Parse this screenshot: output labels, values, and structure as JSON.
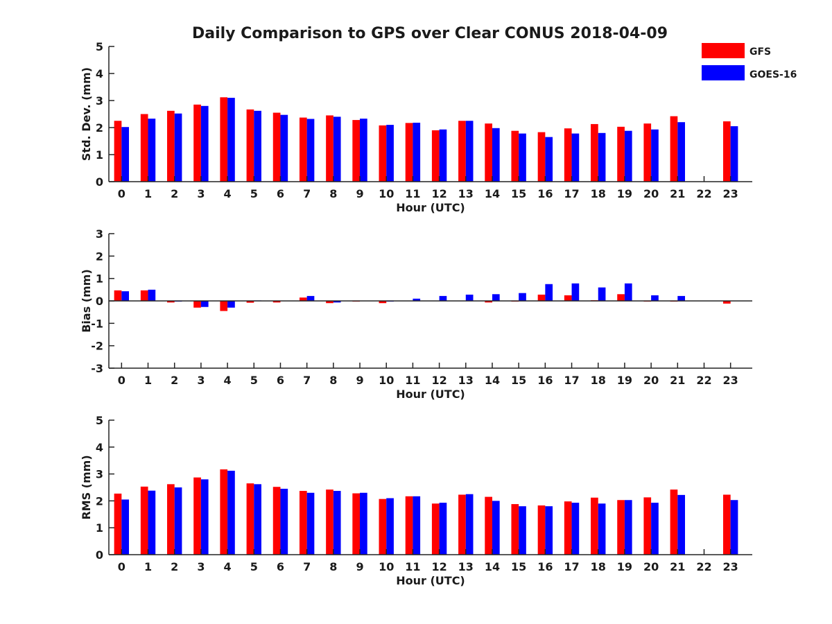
{
  "title": "Daily Comparison to GPS over Clear CONUS 2018-04-09",
  "colors": {
    "GFS": "#ff0000",
    "GOES-16": "#0000ff",
    "axis": "#222222"
  },
  "legend": [
    "GFS",
    "GOES-16"
  ],
  "chart_data": [
    {
      "type": "bar",
      "name": "std-dev",
      "xlabel": "Hour (UTC)",
      "ylabel": "Std. Dev. (mm)",
      "ylim": [
        0,
        5
      ],
      "yticks": [
        0,
        1,
        2,
        3,
        4,
        5
      ],
      "categories": [
        "0",
        "1",
        "2",
        "3",
        "4",
        "5",
        "6",
        "7",
        "8",
        "9",
        "10",
        "11",
        "12",
        "13",
        "14",
        "15",
        "16",
        "17",
        "18",
        "19",
        "20",
        "21",
        "22",
        "23"
      ],
      "series": [
        {
          "name": "GFS",
          "values": [
            2.25,
            2.5,
            2.62,
            2.85,
            3.12,
            2.67,
            2.55,
            2.37,
            2.45,
            2.28,
            2.08,
            2.17,
            1.9,
            2.25,
            2.15,
            1.88,
            1.83,
            1.97,
            2.13,
            2.03,
            2.15,
            2.42,
            null,
            2.23
          ]
        },
        {
          "name": "GOES-16",
          "values": [
            2.02,
            2.33,
            2.52,
            2.8,
            3.1,
            2.62,
            2.47,
            2.32,
            2.4,
            2.33,
            2.1,
            2.18,
            1.93,
            2.25,
            1.98,
            1.78,
            1.65,
            1.78,
            1.8,
            1.88,
            1.93,
            2.2,
            null,
            2.05
          ]
        }
      ]
    },
    {
      "type": "bar",
      "name": "bias",
      "xlabel": "Hour (UTC)",
      "ylabel": "Bias (mm)",
      "ylim": [
        -3,
        3
      ],
      "yticks": [
        -3,
        -2,
        -1,
        0,
        1,
        2,
        3
      ],
      "categories": [
        "0",
        "1",
        "2",
        "3",
        "4",
        "5",
        "6",
        "7",
        "8",
        "9",
        "10",
        "11",
        "12",
        "13",
        "14",
        "15",
        "16",
        "17",
        "18",
        "19",
        "20",
        "21",
        "22",
        "23"
      ],
      "series": [
        {
          "name": "GFS",
          "values": [
            0.47,
            0.47,
            -0.07,
            -0.3,
            -0.45,
            -0.08,
            -0.07,
            0.15,
            -0.1,
            -0.03,
            -0.1,
            0.0,
            0.0,
            0.0,
            -0.07,
            -0.03,
            0.28,
            0.25,
            0.03,
            0.3,
            -0.03,
            -0.03,
            null,
            -0.12
          ]
        },
        {
          "name": "GOES-16",
          "values": [
            0.43,
            0.5,
            -0.03,
            -0.27,
            -0.3,
            0.02,
            0.0,
            0.22,
            -0.07,
            0.0,
            -0.03,
            0.1,
            0.22,
            0.28,
            0.3,
            0.35,
            0.75,
            0.78,
            0.6,
            0.78,
            0.25,
            0.22,
            null,
            0.0
          ]
        }
      ]
    },
    {
      "type": "bar",
      "name": "rms",
      "xlabel": "Hour (UTC)",
      "ylabel": "RMS (mm)",
      "ylim": [
        0,
        5
      ],
      "yticks": [
        0,
        1,
        2,
        3,
        4,
        5
      ],
      "categories": [
        "0",
        "1",
        "2",
        "3",
        "4",
        "5",
        "6",
        "7",
        "8",
        "9",
        "10",
        "11",
        "12",
        "13",
        "14",
        "15",
        "16",
        "17",
        "18",
        "19",
        "20",
        "21",
        "22",
        "23"
      ],
      "series": [
        {
          "name": "GFS",
          "values": [
            2.27,
            2.53,
            2.62,
            2.87,
            3.17,
            2.65,
            2.52,
            2.37,
            2.42,
            2.28,
            2.07,
            2.17,
            1.9,
            2.23,
            2.15,
            1.88,
            1.83,
            1.98,
            2.12,
            2.03,
            2.13,
            2.42,
            null,
            2.23
          ]
        },
        {
          "name": "GOES-16",
          "values": [
            2.05,
            2.38,
            2.5,
            2.8,
            3.12,
            2.62,
            2.45,
            2.3,
            2.37,
            2.3,
            2.1,
            2.17,
            1.93,
            2.25,
            2.0,
            1.8,
            1.8,
            1.93,
            1.9,
            2.03,
            1.93,
            2.22,
            null,
            2.03
          ]
        }
      ]
    }
  ]
}
